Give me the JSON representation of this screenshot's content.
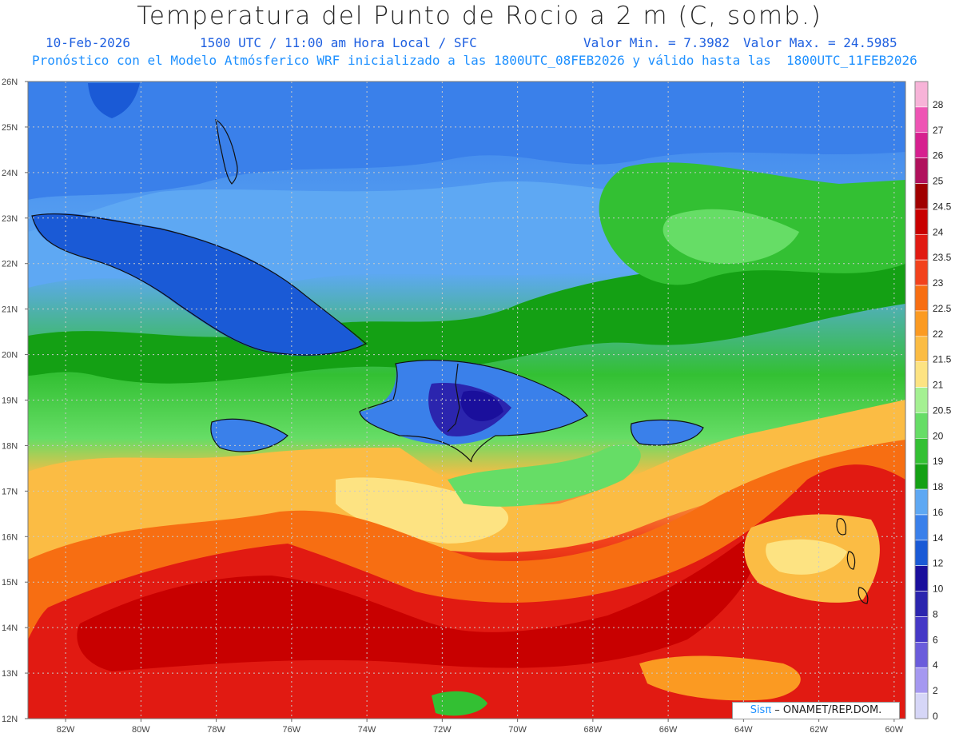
{
  "header": {
    "title": "Temperatura del Punto de Rocio a 2 m (C, somb.)",
    "date": "10-Feb-2026",
    "time": "1500 UTC / 11:00 am Hora Local / SFC",
    "vmin": "Valor Min. = 7.3982",
    "vmax": "Valor Max. = 24.5985",
    "description": "Pronóstico con el Modelo Atmósferico WRF inicializado a las 1800UTC_08FEB2026 y válido hasta las  1800UTC_11FEB2026"
  },
  "axes": {
    "lat_labels": [
      "26N",
      "25N",
      "24N",
      "23N",
      "22N",
      "21N",
      "20N",
      "19N",
      "18N",
      "17N",
      "16N",
      "15N",
      "14N",
      "13N",
      "12N"
    ],
    "lon_labels": [
      "82W",
      "80W",
      "78W",
      "76W",
      "74W",
      "72W",
      "70W",
      "68W",
      "66W",
      "64W",
      "62W",
      "60W"
    ]
  },
  "legend": {
    "levels": [
      {
        "label": "28",
        "color": "#f7b3d8"
      },
      {
        "label": "27",
        "color": "#ee55b4"
      },
      {
        "label": "26",
        "color": "#d6208f"
      },
      {
        "label": "25",
        "color": "#b0115c"
      },
      {
        "label": "24.5",
        "color": "#a00000"
      },
      {
        "label": "24",
        "color": "#c80000"
      },
      {
        "label": "23.5",
        "color": "#e11a12"
      },
      {
        "label": "23",
        "color": "#f2421c"
      },
      {
        "label": "22.5",
        "color": "#f76e12"
      },
      {
        "label": "22",
        "color": "#fb9a22"
      },
      {
        "label": "21.5",
        "color": "#fbbc44"
      },
      {
        "label": "21",
        "color": "#fde382"
      },
      {
        "label": "20.5",
        "color": "#a4f092"
      },
      {
        "label": "20",
        "color": "#66dd66"
      },
      {
        "label": "19",
        "color": "#33c033"
      },
      {
        "label": "18",
        "color": "#14a014"
      },
      {
        "label": "16",
        "color": "#5ea8f3"
      },
      {
        "label": "14",
        "color": "#3a80ea"
      },
      {
        "label": "12",
        "color": "#1a5ad6"
      },
      {
        "label": "10",
        "color": "#1a0f9c"
      },
      {
        "label": "8",
        "color": "#2b25ae"
      },
      {
        "label": "6",
        "color": "#4538c6"
      },
      {
        "label": "4",
        "color": "#6a5cdb"
      },
      {
        "label": "2",
        "color": "#a598f0"
      },
      {
        "label": "0",
        "color": "#d6d6f7"
      }
    ]
  },
  "credit": {
    "sis": "Sisπ",
    "org": " – ONAMET/REP.DOM."
  }
}
